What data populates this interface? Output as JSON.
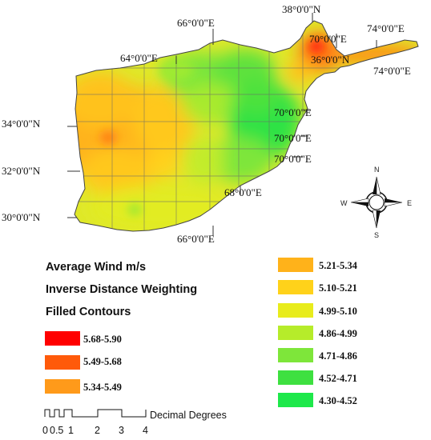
{
  "coordinates": {
    "lat_38n": "38°0'0\"N",
    "lat_36n": "36°0'0\"N",
    "lat_34n": "34°0'0\"N",
    "lat_32n": "32°0'0\"N",
    "lat_30n": "30°0'0\"N",
    "lon_64e": "64°0'0\"E",
    "lon_66e_top": "66°0'0\"E",
    "lon_66e_bottom": "66°0'0\"E",
    "lon_68e": "68°0'0\"E",
    "lon_70e_a": "70°0'0\"E",
    "lon_70e_b": "70°0'0\"E",
    "lon_70e_c": "70°0'0\"E",
    "lon_70e_d": "70°0'0\"E",
    "lon_74e_a": "74°0'0\"E",
    "lon_74e_b": "74°0'0\"E"
  },
  "compass": {
    "north": "N",
    "south": "S",
    "east": "E",
    "west": "W"
  },
  "legend": {
    "title_1": "Average Wind m/s",
    "title_2": "Inverse Distance Weighting",
    "title_3": "Filled Contours",
    "classes": [
      {
        "label": "5.68-5.90",
        "color": "#ff0000"
      },
      {
        "label": "5.49-5.68",
        "color": "#ff5a0a"
      },
      {
        "label": "5.34-5.49",
        "color": "#ff9a1a"
      },
      {
        "label": "5.21-5.34",
        "color": "#ffb21a"
      },
      {
        "label": "5.10-5.21",
        "color": "#ffd21a"
      },
      {
        "label": "4.99-5.10",
        "color": "#e8ec1c"
      },
      {
        "label": "4.86-4.99",
        "color": "#b6ec2a"
      },
      {
        "label": "4.71-4.86",
        "color": "#7ee63a"
      },
      {
        "label": "4.52-4.71",
        "color": "#3ee040"
      },
      {
        "label": "4.30-4.52",
        "color": "#1ee84a"
      }
    ]
  },
  "scale_bar": {
    "ticks": [
      "0",
      "0.5",
      "1",
      "2",
      "3",
      "4"
    ],
    "unit": "Decimal Degrees"
  }
}
